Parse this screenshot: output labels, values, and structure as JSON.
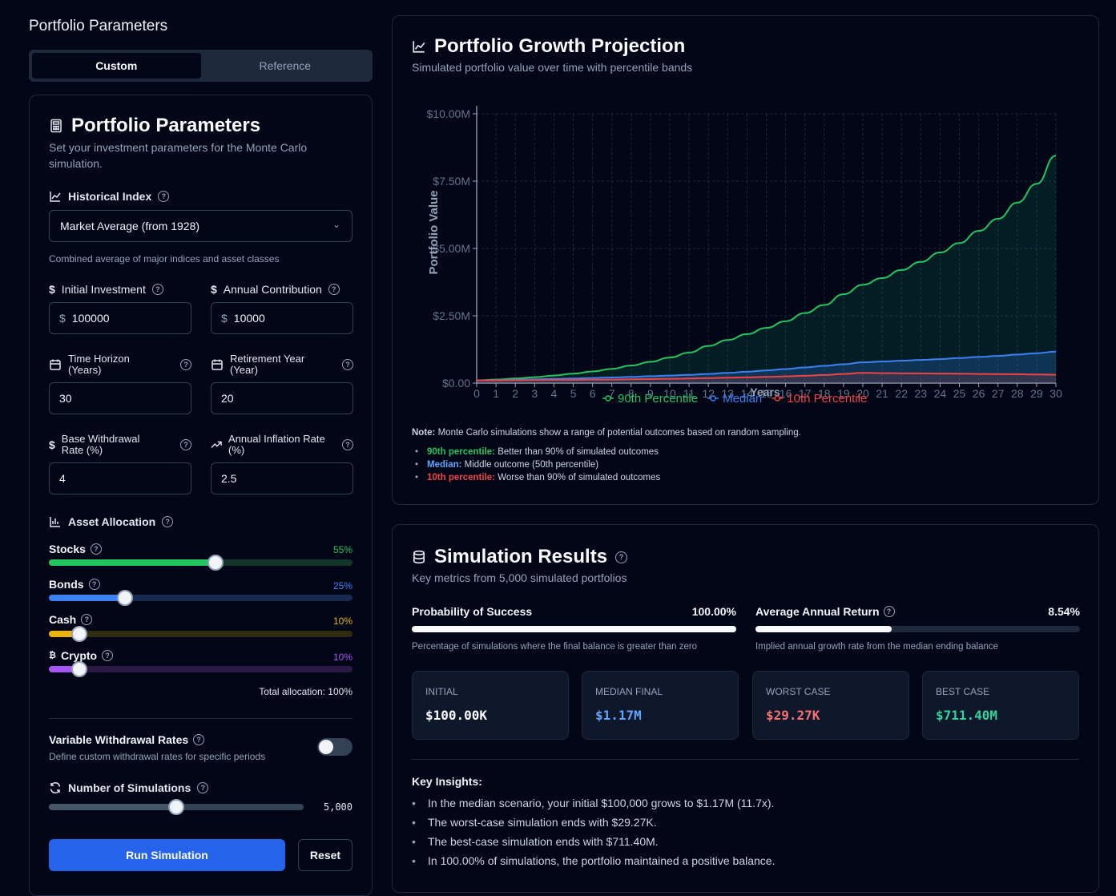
{
  "left": {
    "page_title": "Portfolio Parameters",
    "tabs": [
      {
        "label": "Custom"
      },
      {
        "label": "Reference"
      }
    ],
    "card_title": "Portfolio Parameters",
    "card_subtitle": "Set your investment parameters for the Monte Carlo simulation.",
    "historical_index": {
      "label": "Historical Index",
      "value": "Market Average (from 1928)",
      "help": "Combined average of major indices and asset classes"
    },
    "initial_investment": {
      "label": "Initial Investment",
      "prefix": "$",
      "value": "100000"
    },
    "annual_contribution": {
      "label": "Annual Contribution",
      "prefix": "$",
      "value": "10000"
    },
    "time_horizon": {
      "label": "Time Horizon (Years)",
      "value": "30"
    },
    "retirement_year": {
      "label": "Retirement Year (Year)",
      "value": "20"
    },
    "withdrawal_rate": {
      "label": "Base Withdrawal Rate (%)",
      "value": "4"
    },
    "inflation_rate": {
      "label": "Annual Inflation Rate (%)",
      "value": "2.5"
    },
    "allocation": {
      "label": "Asset Allocation",
      "items": [
        {
          "name": "Stocks",
          "percent": "55%",
          "value": 0.55,
          "color": "#22c55e",
          "track": "#14352a"
        },
        {
          "name": "Bonds",
          "percent": "25%",
          "value": 0.25,
          "color": "#3b82f6",
          "track": "#172a4f"
        },
        {
          "name": "Cash",
          "percent": "10%",
          "value": 0.1,
          "color": "#eab308",
          "track": "#2f2a10"
        },
        {
          "name": "Crypto",
          "percent": "10%",
          "value": 0.1,
          "color": "#a855f7",
          "track": "#2b1845"
        }
      ],
      "total": "Total allocation: 100%"
    },
    "variable_withdrawal": {
      "label": "Variable Withdrawal Rates",
      "desc": "Define custom withdrawal rates for specific periods",
      "enabled": false
    },
    "simulations": {
      "label": "Number of Simulations",
      "value": "5,000",
      "fraction": 0.5
    },
    "run_label": "Run Simulation",
    "reset_label": "Reset"
  },
  "growth": {
    "title": "Portfolio Growth Projection",
    "subtitle": "Simulated portfolio value over time with percentile bands",
    "note_label": "Note:",
    "note": "Monte Carlo simulations show a range of potential outcomes based on random sampling.",
    "bullets": [
      {
        "key": "90th percentile:",
        "text": "Better than 90% of simulated outcomes",
        "color": "#22c55e"
      },
      {
        "key": "Median:",
        "text": "Middle outcome (50th percentile)",
        "color": "#60a5fa"
      },
      {
        "key": "10th percentile:",
        "text": "Worse than 90% of simulated outcomes",
        "color": "#ef4444"
      }
    ]
  },
  "chart_data": {
    "type": "line",
    "xlabel": "Years",
    "ylabel": "Portfolio Value",
    "ylim": [
      0,
      10000000
    ],
    "yticks": [
      "$0.00",
      "$2.50M",
      "$5.00M",
      "$7.50M",
      "$10.00M"
    ],
    "x": [
      0,
      1,
      2,
      3,
      4,
      5,
      6,
      7,
      8,
      9,
      10,
      11,
      12,
      13,
      14,
      15,
      16,
      17,
      18,
      19,
      20,
      21,
      22,
      23,
      24,
      25,
      26,
      27,
      28,
      29,
      30
    ],
    "series": [
      {
        "name": "90th Percentile",
        "color": "#22c55e",
        "values": [
          100000,
          130000,
          170000,
          220000,
          280000,
          350000,
          430000,
          530000,
          650000,
          790000,
          950000,
          1130000,
          1380000,
          1600000,
          1820000,
          2050000,
          2300000,
          2600000,
          2900000,
          3300000,
          3650000,
          3900000,
          4200000,
          4500000,
          4850000,
          5200000,
          5650000,
          6100000,
          6700000,
          7400000,
          8450000
        ]
      },
      {
        "name": "Median",
        "color": "#3b82f6",
        "values": [
          100000,
          110000,
          125000,
          140000,
          155000,
          170000,
          190000,
          210000,
          230000,
          255000,
          280000,
          305000,
          340000,
          380000,
          420000,
          470000,
          520000,
          580000,
          640000,
          700000,
          770000,
          800000,
          830000,
          860000,
          890000,
          930000,
          970000,
          1010000,
          1060000,
          1110000,
          1170000
        ]
      },
      {
        "name": "10th Percentile",
        "color": "#ef4444",
        "values": [
          100000,
          100000,
          105000,
          110000,
          115000,
          120000,
          125000,
          130000,
          140000,
          150000,
          160000,
          170000,
          185000,
          200000,
          215000,
          230000,
          250000,
          270000,
          300000,
          340000,
          380000,
          370000,
          365000,
          360000,
          355000,
          350000,
          340000,
          335000,
          330000,
          320000,
          310000
        ]
      }
    ]
  },
  "results": {
    "title": "Simulation Results",
    "subtitle": "Key metrics from 5,000 simulated portfolios",
    "success": {
      "label": "Probability of Success",
      "value": "100.00%",
      "fraction": 1.0,
      "desc": "Percentage of simulations where the final balance is greater than zero"
    },
    "annual_return": {
      "label": "Average Annual Return",
      "value": "8.54%",
      "fraction": 0.42,
      "desc": "Implied annual growth rate from the median ending balance"
    },
    "stats": [
      {
        "title": "INITIAL",
        "value": "$100.00K",
        "color": "#f8fafc"
      },
      {
        "title": "MEDIAN FINAL",
        "value": "$1.17M",
        "color": "#60a5fa"
      },
      {
        "title": "WORST CASE",
        "value": "$29.27K",
        "color": "#f87171"
      },
      {
        "title": "BEST CASE",
        "value": "$711.40M",
        "color": "#34d399"
      }
    ],
    "insights_label": "Key Insights:",
    "insights": [
      "In the median scenario, your initial $100,000 grows to $1.17M (11.7x).",
      "The worst-case simulation ends with $29.27K.",
      "The best-case simulation ends with $711.40M.",
      "In 100.00% of simulations, the portfolio maintained a positive balance."
    ]
  }
}
